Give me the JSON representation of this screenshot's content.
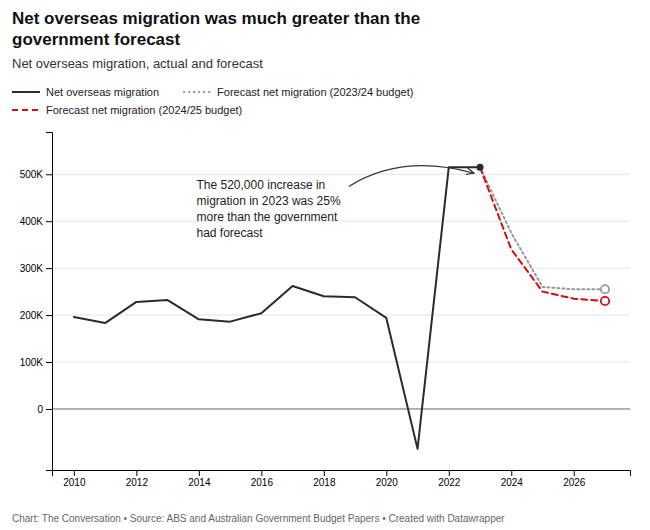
{
  "chart_data": {
    "type": "line",
    "title": [
      "Net overseas migration was much greater than the",
      "government forecast"
    ],
    "subtitle": "Net overseas migration, actual and forecast",
    "footer": "Chart: The Conversation • Source: ABS and Australian Government Budget Papers • Created with Datawrapper",
    "annotation": [
      "The 520,000 increase in",
      "migration in 2023 was 25%",
      "more than the government",
      "had forecast"
    ],
    "series": [
      {
        "name": "Net overseas migration",
        "color": "#2b2b2b",
        "line_style": "solid",
        "marker": "circle",
        "x": [
          2010,
          2011,
          2012,
          2013,
          2014,
          2015,
          2016,
          2017,
          2018,
          2019,
          2020,
          2021,
          2022,
          2023
        ],
        "values": [
          196000,
          183000,
          228000,
          232000,
          191000,
          186000,
          204000,
          262000,
          240000,
          238000,
          194000,
          -85000,
          515000,
          515000
        ]
      },
      {
        "name": "Forecast net migration (2023/24 budget)",
        "color": "#999999",
        "line_style": "dotted",
        "marker": "open-circle",
        "x": [
          2023,
          2024,
          2025,
          2026,
          2027
        ],
        "values": [
          515000,
          375000,
          260000,
          255000,
          255000
        ]
      },
      {
        "name": "Forecast net migration (2024/25 budget)",
        "color": "#cc1111",
        "line_style": "dashed",
        "marker": "open-circle",
        "x": [
          2023,
          2024,
          2025,
          2026,
          2027
        ],
        "values": [
          515000,
          340000,
          250000,
          235000,
          230000
        ]
      }
    ],
    "xlim": [
      2009.3,
      2027.8
    ],
    "xticks": [
      2010,
      2012,
      2014,
      2016,
      2018,
      2020,
      2022,
      2024,
      2026
    ],
    "ylim": [
      -130000,
      590000
    ],
    "yticks": [
      0,
      {
        "value": 100000,
        "label": "100K"
      },
      {
        "value": 200000,
        "label": "200K"
      },
      {
        "value": 300000,
        "label": "300K"
      },
      {
        "value": 400000,
        "label": "400K"
      },
      {
        "value": 500000,
        "label": "500K"
      }
    ],
    "grid": true
  }
}
